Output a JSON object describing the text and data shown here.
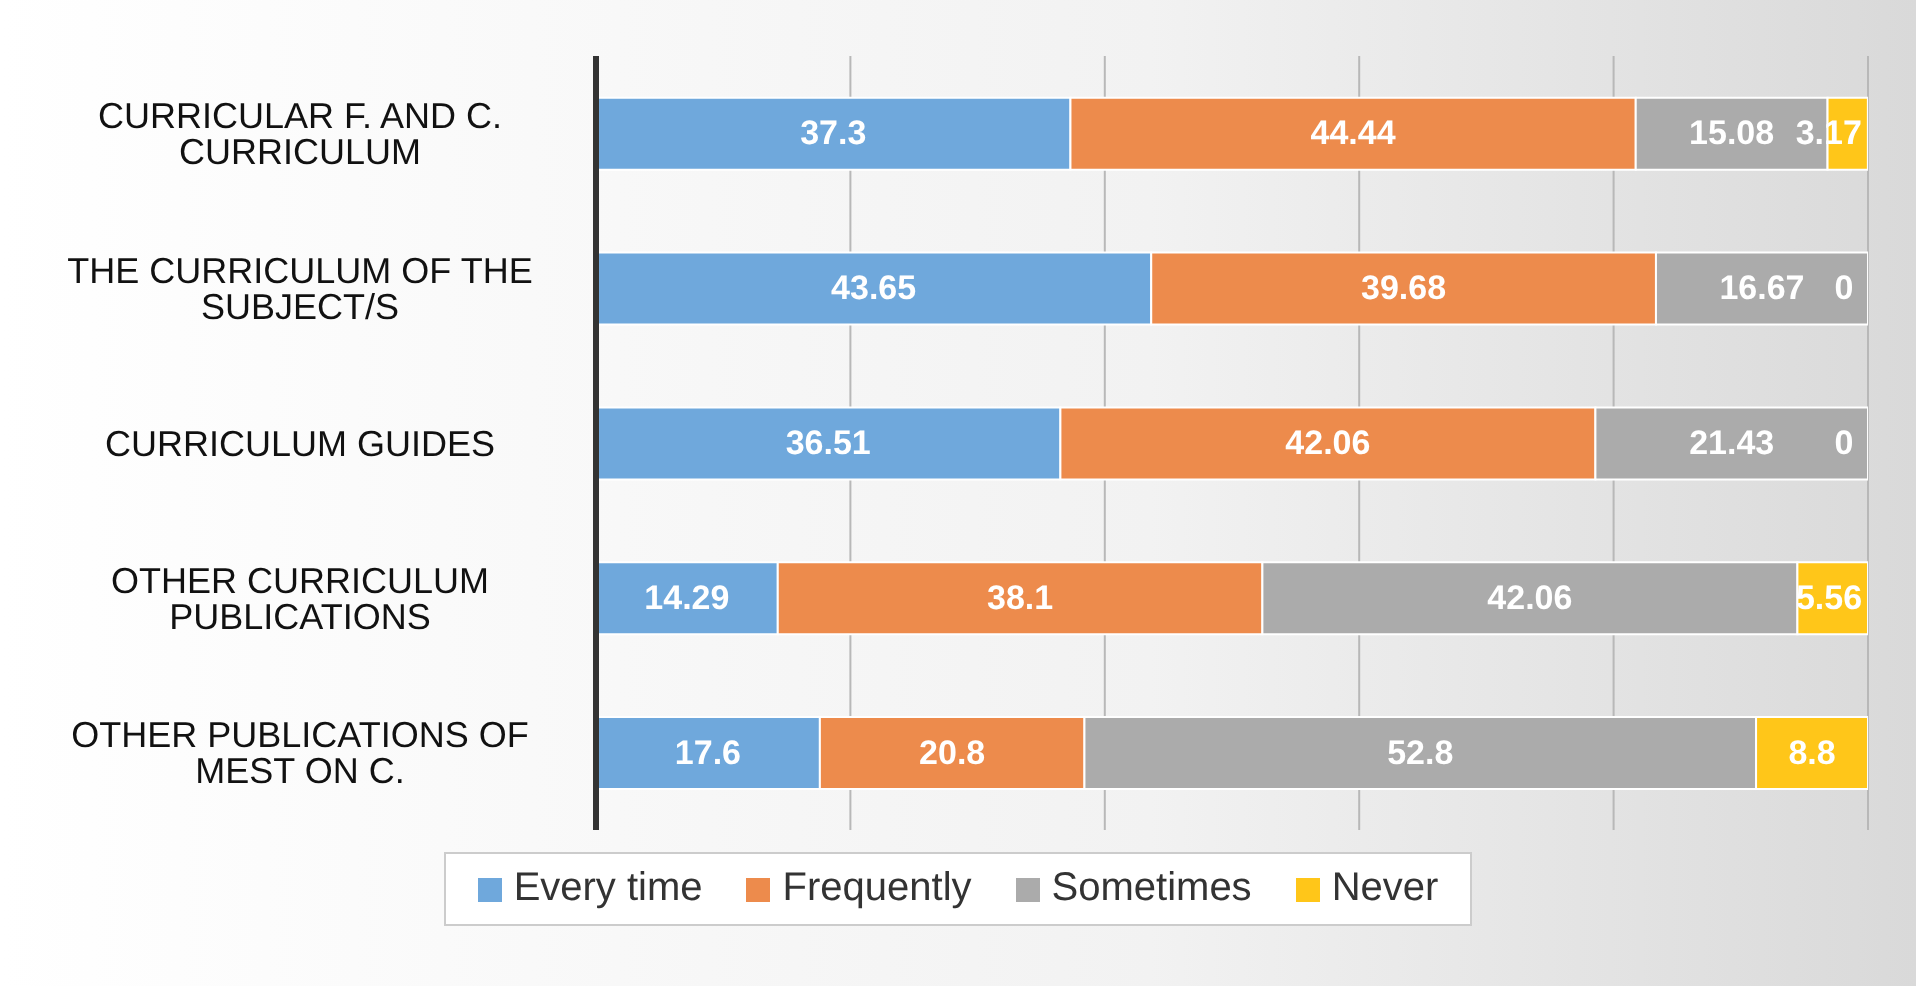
{
  "chart_data": {
    "type": "bar",
    "orientation": "horizontal",
    "stacked": true,
    "categories": [
      "CURRICULAR F. AND C. CURRICULUM",
      "THE CURRICULUM OF THE SUBJECT/S",
      "CURRICULUM GUIDES",
      "OTHER CURRICULUM PUBLICATIONS",
      "OTHER PUBLICATIONS OF MEST ON C."
    ],
    "series": [
      {
        "name": "Every time",
        "color": "#6fa8dc",
        "values": [
          37.3,
          43.65,
          36.51,
          14.29,
          17.6
        ]
      },
      {
        "name": "Frequently",
        "color": "#ed8b4c",
        "values": [
          44.44,
          39.68,
          42.06,
          38.1,
          20.8
        ]
      },
      {
        "name": "Sometimes",
        "color": "#ababab",
        "values": [
          15.08,
          16.67,
          21.43,
          42.06,
          52.8
        ]
      },
      {
        "name": "Never",
        "color": "#ffc619",
        "values": [
          3.17,
          0,
          0,
          5.56,
          8.8
        ]
      }
    ],
    "xlim": [
      0,
      100
    ],
    "tick_labels": "y",
    "grid": "x",
    "legend": "bottom",
    "data_labels": true
  }
}
